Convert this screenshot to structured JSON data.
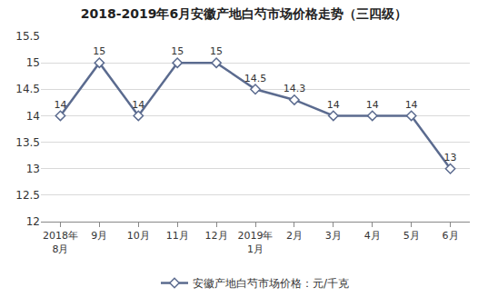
{
  "chart_data": {
    "type": "line",
    "title": "2018-2019年6月安徽产地白芍市场价格走势（三四级）",
    "categories": [
      "2018年\n8月",
      "9月",
      "10月",
      "11月",
      "12月",
      "2019年\n1月",
      "2月",
      "3月",
      "4月",
      "5月",
      "6月"
    ],
    "series": [
      {
        "name": "安徽产地白芍市场价格：元/千克",
        "color": "#5b6b8f",
        "values": [
          14,
          15,
          14,
          15,
          15,
          14.5,
          14.3,
          14,
          14,
          14,
          13
        ]
      }
    ],
    "ylim": [
      12,
      15.5
    ],
    "yticks": [
      12,
      12.5,
      13,
      13.5,
      14,
      14.5,
      15,
      15.5
    ],
    "grid": true,
    "legend": "bottom",
    "data_labels": true,
    "marker": "diamond",
    "line_style": "solid"
  }
}
